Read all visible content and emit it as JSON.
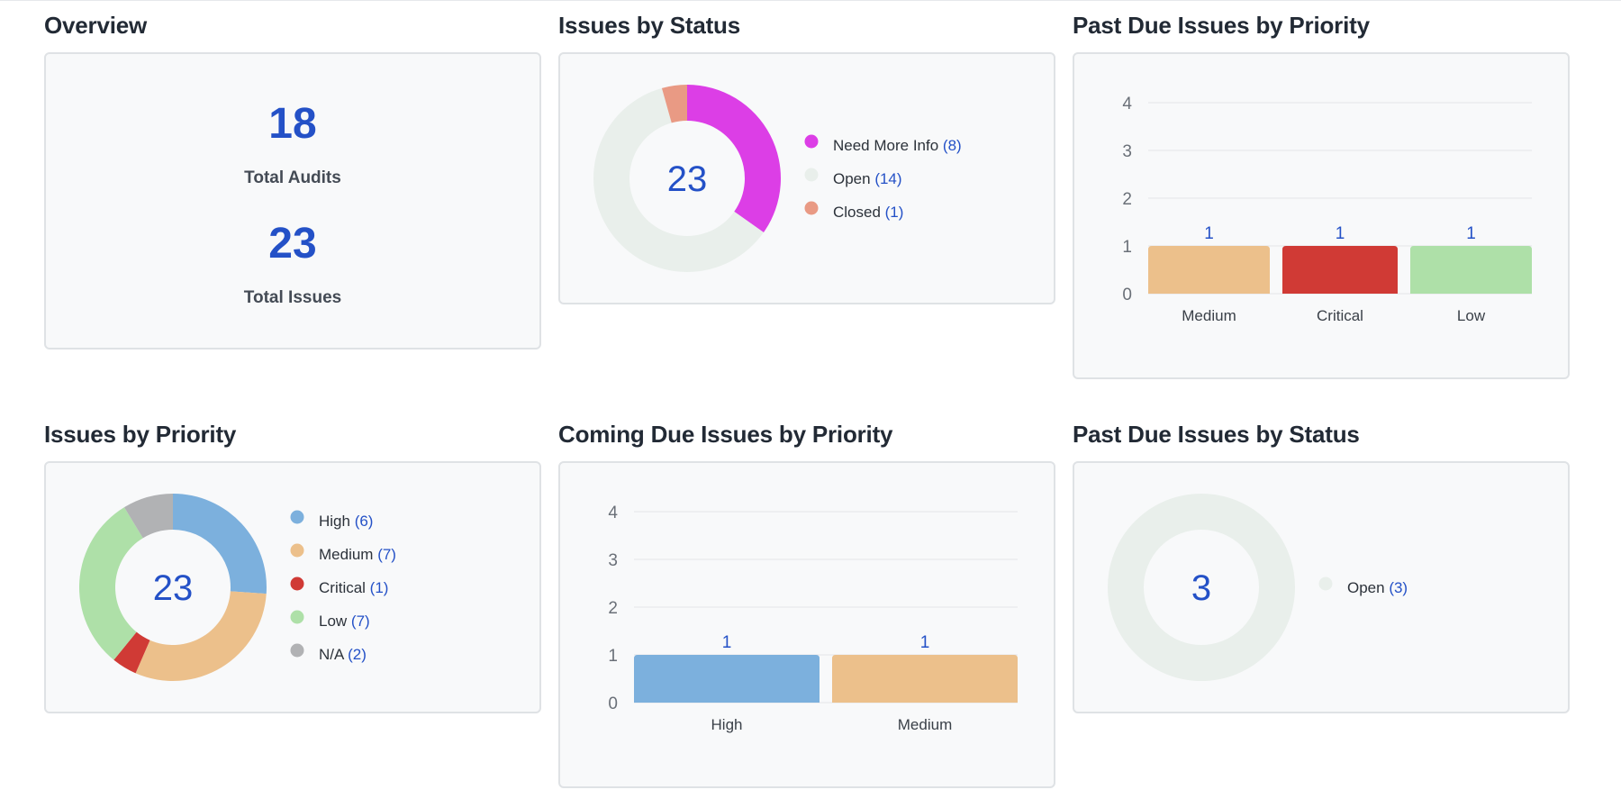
{
  "overview": {
    "title": "Overview",
    "total_audits_value": "18",
    "total_audits_label": "Total Audits",
    "total_issues_value": "23",
    "total_issues_label": "Total Issues"
  },
  "colors": {
    "accent": "#2451c7",
    "need_more_info": "#dc3ee6",
    "open": "#e9efeb",
    "closed": "#e99a84",
    "high": "#7cb0dd",
    "medium": "#ecc08b",
    "critical": "#d03a35",
    "low": "#aee0a8",
    "na": "#b1b2b4"
  },
  "chart_data": [
    {
      "id": "issues_by_status",
      "type": "pie",
      "title": "Issues by Status",
      "center_label": "23",
      "slices": [
        {
          "label": "Need More Info",
          "value": 8,
          "color": "#dc3ee6"
        },
        {
          "label": "Open",
          "value": 14,
          "color": "#e9efeb"
        },
        {
          "label": "Closed",
          "value": 1,
          "color": "#e99a84"
        }
      ]
    },
    {
      "id": "past_due_by_priority",
      "type": "bar",
      "title": "Past Due Issues by Priority",
      "categories": [
        "Medium",
        "Critical",
        "Low"
      ],
      "values": [
        1,
        1,
        1
      ],
      "colors": [
        "#ecc08b",
        "#d03a35",
        "#aee0a8"
      ],
      "ylim": [
        0,
        4
      ],
      "yticks": [
        0,
        1,
        2,
        3,
        4
      ],
      "grid": true
    },
    {
      "id": "issues_by_priority",
      "type": "pie",
      "title": "Issues by Priority",
      "center_label": "23",
      "slices": [
        {
          "label": "High",
          "value": 6,
          "color": "#7cb0dd"
        },
        {
          "label": "Medium",
          "value": 7,
          "color": "#ecc08b"
        },
        {
          "label": "Critical",
          "value": 1,
          "color": "#d03a35"
        },
        {
          "label": "Low",
          "value": 7,
          "color": "#aee0a8"
        },
        {
          "label": "N/A",
          "value": 2,
          "color": "#b1b2b4"
        }
      ]
    },
    {
      "id": "coming_due_by_priority",
      "type": "bar",
      "title": "Coming Due Issues by Priority",
      "categories": [
        "High",
        "Medium"
      ],
      "values": [
        1,
        1
      ],
      "colors": [
        "#7cb0dd",
        "#ecc08b"
      ],
      "ylim": [
        0,
        4
      ],
      "yticks": [
        0,
        1,
        2,
        3,
        4
      ],
      "grid": true
    },
    {
      "id": "past_due_by_status",
      "type": "pie",
      "title": "Past Due Issues by Status",
      "center_label": "3",
      "slices": [
        {
          "label": "Open",
          "value": 3,
          "color": "#e9efeb"
        }
      ]
    }
  ]
}
